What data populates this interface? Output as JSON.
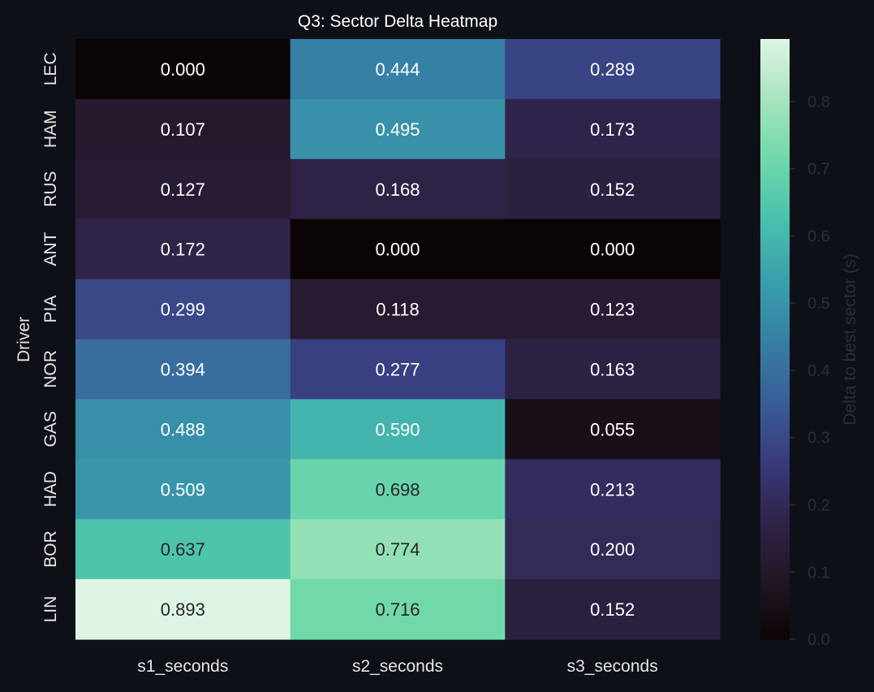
{
  "chart_data": {
    "type": "heatmap",
    "title": "Q3: Sector Delta Heatmap",
    "ylabel": "Driver",
    "xlabel": "",
    "x_categories": [
      "s1_seconds",
      "s2_seconds",
      "s3_seconds"
    ],
    "y_categories": [
      "LEC",
      "HAM",
      "RUS",
      "ANT",
      "PIA",
      "NOR",
      "GAS",
      "HAD",
      "BOR",
      "LIN"
    ],
    "values": [
      [
        0.0,
        0.444,
        0.289
      ],
      [
        0.107,
        0.495,
        0.173
      ],
      [
        0.127,
        0.168,
        0.152
      ],
      [
        0.172,
        0.0,
        0.0
      ],
      [
        0.299,
        0.118,
        0.123
      ],
      [
        0.394,
        0.277,
        0.163
      ],
      [
        0.488,
        0.59,
        0.055
      ],
      [
        0.509,
        0.698,
        0.213
      ],
      [
        0.637,
        0.774,
        0.2
      ],
      [
        0.893,
        0.716,
        0.152
      ]
    ],
    "value_format": "0.000",
    "colorbar": {
      "label": "Delta to best sector (s)",
      "vmin": 0.0,
      "vmax": 0.893,
      "ticks": [
        "0.0",
        "0.1",
        "0.2",
        "0.3",
        "0.4",
        "0.5",
        "0.6",
        "0.7",
        "0.8"
      ],
      "colormap": "mako"
    },
    "grid": false,
    "legend": "colorbar-right"
  },
  "colors": {
    "background": "#0d1117",
    "title_text": "#ffffff",
    "axis_text": "#e6e6e6",
    "colorbar_text": "#2a2f36",
    "annotation_light": "#ffffff",
    "annotation_dark": "#262626"
  }
}
